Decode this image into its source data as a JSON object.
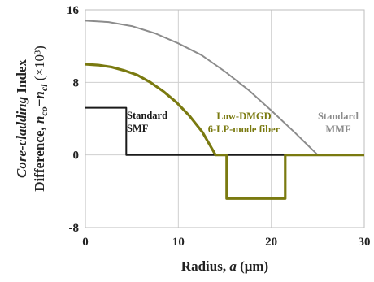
{
  "chart_data": {
    "type": "line",
    "title": "",
    "xlabel": "Radius, a (μm)",
    "ylabel": "Core-cladding Index Difference, nco−ncl (×10³)",
    "xlim": [
      0,
      30
    ],
    "ylim": [
      -8,
      16
    ],
    "xticks": [
      "0",
      "10",
      "20",
      "30"
    ],
    "yticks": [
      "-8",
      "0",
      "8",
      "16"
    ],
    "grid": true,
    "legend": "none",
    "series": [
      {
        "name": "Standard SMF",
        "color": "#1a1a1a",
        "x": [
          0,
          4.4,
          4.4,
          30
        ],
        "y": [
          5.2,
          5.2,
          0,
          0
        ]
      },
      {
        "name": "Standard MMF",
        "color": "#8c8c8c",
        "x": [
          0,
          2.5,
          5,
          7.5,
          10,
          12.5,
          15,
          17.5,
          20,
          22.5,
          25,
          30
        ],
        "y": [
          14.8,
          14.65,
          14.2,
          13.4,
          12.3,
          11.0,
          9.2,
          7.2,
          4.9,
          2.5,
          0,
          0
        ]
      },
      {
        "name": "Low-DMGD 6-LP-mode fiber",
        "color": "#7a7a10",
        "x": [
          0,
          1.4,
          2.8,
          4.2,
          5.6,
          7,
          8.4,
          9.8,
          11.2,
          12.6,
          14,
          15.2,
          15.2,
          21.5,
          21.5,
          30
        ],
        "y": [
          10.0,
          9.9,
          9.7,
          9.3,
          8.8,
          8.0,
          7.0,
          5.8,
          4.3,
          2.5,
          0,
          0,
          -4.8,
          -4.8,
          0,
          0
        ]
      }
    ],
    "annotations": [
      {
        "lines": [
          "Standard",
          "SMF"
        ],
        "color": "#1a1a1a",
        "series": "Standard SMF"
      },
      {
        "lines": [
          "Low-DMGD",
          "6-LP-mode fiber"
        ],
        "color": "#7a7a10",
        "series": "Low-DMGD 6-LP-mode fiber"
      },
      {
        "lines": [
          "Standard",
          "MMF"
        ],
        "color": "#8c8c8c",
        "series": "Standard MMF"
      }
    ]
  }
}
